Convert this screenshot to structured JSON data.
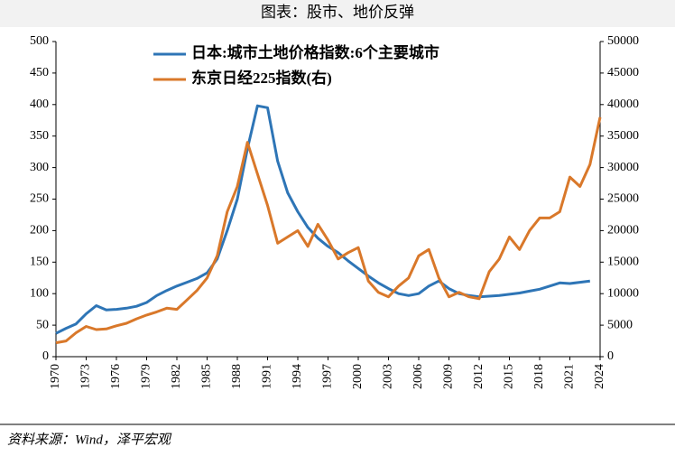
{
  "chart_data": {
    "type": "line",
    "title": "图表：股市、地价反弹",
    "source": "资料来源：Wind，泽平宏观",
    "x": [
      1970,
      1971,
      1972,
      1973,
      1974,
      1975,
      1976,
      1977,
      1978,
      1979,
      1980,
      1981,
      1982,
      1983,
      1984,
      1985,
      1986,
      1987,
      1988,
      1989,
      1990,
      1991,
      1992,
      1993,
      1994,
      1995,
      1996,
      1997,
      1998,
      1999,
      2000,
      2001,
      2002,
      2003,
      2004,
      2005,
      2006,
      2007,
      2008,
      2009,
      2010,
      2011,
      2012,
      2013,
      2014,
      2015,
      2016,
      2017,
      2018,
      2019,
      2020,
      2021,
      2022,
      2023,
      2024
    ],
    "series": [
      {
        "name": "日本:城市土地价格指数:6个主要城市",
        "color": "#2e75b6",
        "values": [
          37,
          45,
          52,
          68,
          81,
          74,
          75,
          77,
          80,
          86,
          97,
          105,
          112,
          118,
          124,
          133,
          155,
          200,
          250,
          330,
          398,
          395,
          310,
          260,
          230,
          205,
          188,
          175,
          165,
          152,
          140,
          128,
          117,
          108,
          100,
          97,
          100,
          112,
          120,
          108,
          100,
          97,
          95,
          96,
          97,
          99,
          101,
          104,
          107,
          112,
          117,
          116,
          118,
          120,
          null
        ]
      },
      {
        "name": "东京日经225指数(右)",
        "color": "#d9782a",
        "axis": "y2",
        "values": [
          2200,
          2500,
          3800,
          4800,
          4300,
          4400,
          4900,
          5300,
          6000,
          6600,
          7100,
          7700,
          7500,
          9000,
          10500,
          12500,
          16000,
          23000,
          27000,
          34000,
          29000,
          24000,
          18000,
          19000,
          20000,
          17500,
          21000,
          18500,
          15500,
          16500,
          17300,
          12000,
          10200,
          9500,
          11200,
          12500,
          16000,
          17000,
          12500,
          9500,
          10200,
          9500,
          9200,
          13500,
          15500,
          19000,
          17000,
          20000,
          22000,
          22000,
          23000,
          28500,
          27000,
          30500,
          38000
        ]
      }
    ],
    "xlim": [
      1970,
      2024
    ],
    "xticks": [
      1970,
      1973,
      1976,
      1979,
      1982,
      1985,
      1988,
      1991,
      1994,
      1997,
      2000,
      2003,
      2006,
      2009,
      2012,
      2015,
      2018,
      2021,
      2024
    ],
    "ylim": [
      0,
      500
    ],
    "yticks": [
      0,
      50,
      100,
      150,
      200,
      250,
      300,
      350,
      400,
      450,
      500
    ],
    "y2lim": [
      0,
      50000
    ],
    "y2ticks": [
      0,
      5000,
      10000,
      15000,
      20000,
      25000,
      30000,
      35000,
      40000,
      45000,
      50000
    ]
  }
}
